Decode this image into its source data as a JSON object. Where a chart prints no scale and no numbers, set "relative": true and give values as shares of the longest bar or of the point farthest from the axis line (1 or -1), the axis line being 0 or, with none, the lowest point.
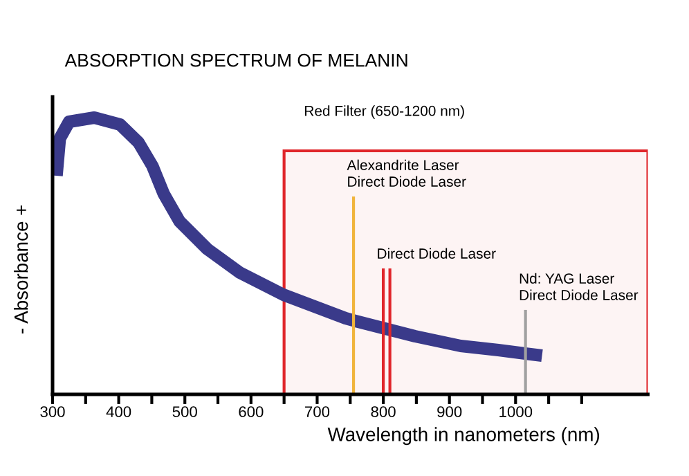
{
  "chart_data": {
    "type": "line",
    "title": "ABSORPTION SPECTRUM OF MELANIN",
    "xlabel": "Wavelength in nanometers (nm)",
    "ylabel": "- Absorbance +",
    "relative": true,
    "x": [
      306,
      311,
      325,
      363,
      402,
      430,
      451,
      468,
      492,
      534,
      583,
      649,
      743,
      758,
      848,
      917,
      974,
      1040
    ],
    "series": [
      {
        "color": "#3a3a8a",
        "values": [
          0.79,
          0.925,
          0.985,
          1.0,
          0.975,
          0.91,
          0.825,
          0.725,
          0.625,
          0.525,
          0.44,
          0.36,
          0.275,
          0.265,
          0.21,
          0.175,
          0.16,
          0.14
        ]
      }
    ],
    "xlim": [
      300,
      1200
    ],
    "xticks": [
      300,
      {
        "value": 350,
        "label": null
      },
      400,
      {
        "value": 450,
        "label": null
      },
      500,
      {
        "value": 550,
        "label": null
      },
      600,
      {
        "value": 650,
        "label": null
      },
      700,
      {
        "value": 750,
        "label": null
      },
      800,
      {
        "value": 850,
        "label": null
      },
      900,
      {
        "value": 950,
        "label": null
      },
      1000,
      {
        "value": 1050,
        "label": null
      },
      {
        "value": 1100,
        "label": null
      }
    ],
    "ref_lines": [
      {
        "axis": "x",
        "value": 755,
        "label": "Alexandrite Laser\nDirect Diode Laser",
        "color": "#f0b43c"
      },
      {
        "axis": "x",
        "value": 800,
        "label": "Direct Diode Laser",
        "color": "#e0262b"
      },
      {
        "axis": "x",
        "value": 810,
        "color": "#e0262b"
      },
      {
        "axis": "x",
        "value": 1015,
        "label": "Nd: YAG Laser\nDirect Diode Laser",
        "color": "#a0a0a0"
      }
    ],
    "bands": [
      {
        "axis": "x",
        "from": 650,
        "to": 1200,
        "label": "Red Filter (650-1200 nm)",
        "color": "#e0262b"
      }
    ],
    "grid": false,
    "legend": false,
    "marker": "none",
    "line_style": "solid"
  }
}
